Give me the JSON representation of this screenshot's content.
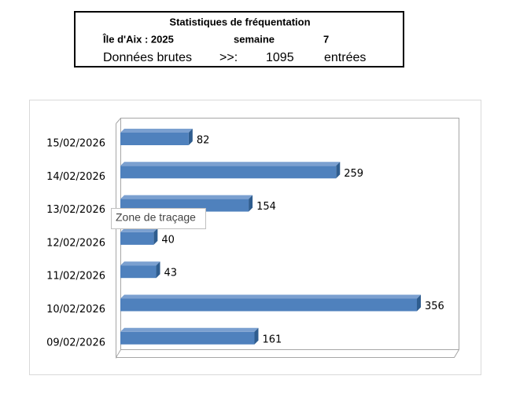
{
  "header": {
    "title": "Statistiques de  fréquentation",
    "place": "Île d'Aix :  2025",
    "week_label": "semaine",
    "week": "7",
    "raw_label": "Données brutes",
    "arrow": ">>:",
    "total": "1095",
    "unit": "entrées"
  },
  "tooltip": "Zone de traçage",
  "chart_data": {
    "type": "bar",
    "orientation": "horizontal",
    "style": "3d",
    "categories": [
      "15/02/2026",
      "14/02/2026",
      "13/02/2026",
      "12/02/2026",
      "11/02/2026",
      "10/02/2026",
      "09/02/2026"
    ],
    "values": [
      82,
      259,
      154,
      40,
      43,
      356,
      161
    ],
    "color": "#4f81bd"
  }
}
